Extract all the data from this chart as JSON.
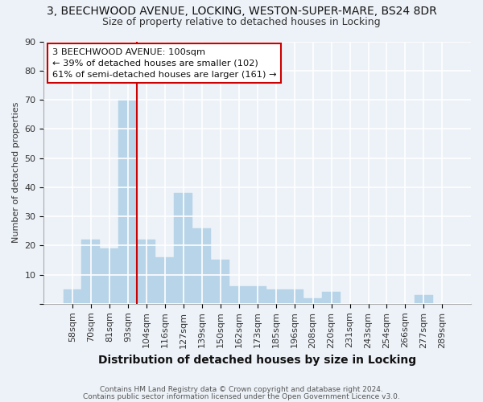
{
  "title_line1": "3, BEECHWOOD AVENUE, LOCKING, WESTON-SUPER-MARE, BS24 8DR",
  "title_line2": "Size of property relative to detached houses in Locking",
  "xlabel": "Distribution of detached houses by size in Locking",
  "ylabel": "Number of detached properties",
  "categories": [
    "58sqm",
    "70sqm",
    "81sqm",
    "93sqm",
    "104sqm",
    "116sqm",
    "127sqm",
    "139sqm",
    "150sqm",
    "162sqm",
    "173sqm",
    "185sqm",
    "196sqm",
    "208sqm",
    "220sqm",
    "231sqm",
    "243sqm",
    "254sqm",
    "266sqm",
    "277sqm",
    "289sqm"
  ],
  "values": [
    5,
    22,
    19,
    70,
    22,
    16,
    38,
    26,
    15,
    6,
    6,
    5,
    5,
    2,
    4,
    0,
    0,
    0,
    0,
    3,
    0
  ],
  "bar_color": "#b8d4e8",
  "bar_edge_color": "#b8d4e8",
  "background_color": "#edf2f8",
  "grid_color": "#ffffff",
  "property_line_color": "#cc0000",
  "property_line_index": 4,
  "annotation_text": "3 BEECHWOOD AVENUE: 100sqm\n← 39% of detached houses are smaller (102)\n61% of semi-detached houses are larger (161) →",
  "annotation_box_facecolor": "#ffffff",
  "annotation_box_edgecolor": "#cc0000",
  "footer_line1": "Contains HM Land Registry data © Crown copyright and database right 2024.",
  "footer_line2": "Contains public sector information licensed under the Open Government Licence v3.0.",
  "ylim": [
    0,
    90
  ],
  "yticks": [
    0,
    10,
    20,
    30,
    40,
    50,
    60,
    70,
    80,
    90
  ],
  "title1_fontsize": 10,
  "title2_fontsize": 9,
  "xlabel_fontsize": 10,
  "ylabel_fontsize": 8,
  "tick_fontsize": 8,
  "footer_fontsize": 6.5
}
